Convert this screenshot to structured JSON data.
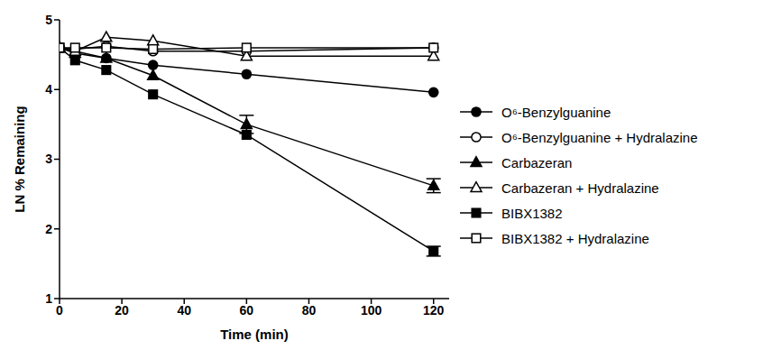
{
  "chart_data": {
    "type": "line",
    "x_label": "Time (min)",
    "y_label": "LN % Remaining",
    "x": [
      0,
      5,
      15,
      30,
      60,
      120
    ],
    "xlim": [
      0,
      125
    ],
    "xticks": [
      0,
      20,
      40,
      60,
      80,
      100,
      120
    ],
    "ylim": [
      1,
      5
    ],
    "yticks": [
      1,
      2,
      3,
      4,
      5
    ],
    "grid": false,
    "legend": "right",
    "series": [
      {
        "name": "O⁶-Benzylguanine",
        "color": "#000000",
        "marker": "filled_circle",
        "values": [
          4.6,
          4.55,
          4.45,
          4.35,
          4.22,
          3.96
        ]
      },
      {
        "name": "O⁶-Benzylguanine + Hydralazine",
        "color": "#000000",
        "marker": "open_circle",
        "values": [
          4.6,
          4.58,
          4.62,
          4.55,
          4.55,
          4.6
        ]
      },
      {
        "name": "Carbazeran",
        "color": "#000000",
        "marker": "filled_triangle",
        "values": [
          4.6,
          4.52,
          4.45,
          4.2,
          3.5,
          2.62
        ],
        "errors": [
          null,
          null,
          null,
          null,
          0.13,
          0.1
        ]
      },
      {
        "name": "Carbazeran + Hydralazine",
        "color": "#000000",
        "marker": "open_triangle",
        "values": [
          4.6,
          4.55,
          4.75,
          4.7,
          4.48,
          4.48
        ]
      },
      {
        "name": "BIBX1382",
        "color": "#000000",
        "marker": "filled_square",
        "values": [
          4.6,
          4.42,
          4.28,
          3.93,
          3.35,
          1.68
        ],
        "errors": [
          null,
          null,
          null,
          null,
          null,
          0.07
        ]
      },
      {
        "name": "BIBX1382 + Hydralazine",
        "color": "#000000",
        "marker": "open_square",
        "values": [
          4.6,
          4.6,
          4.6,
          4.58,
          4.6,
          4.6
        ]
      }
    ]
  }
}
